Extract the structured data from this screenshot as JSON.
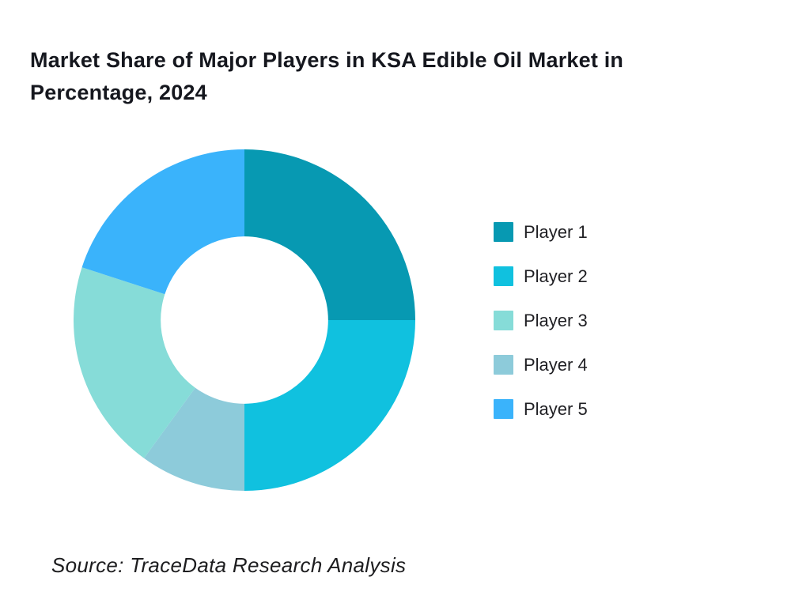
{
  "page": {
    "background": "#FFFFFF"
  },
  "header": {
    "title_line1": "Market Share of Major Players in KSA Edible Oil Market in",
    "title_line2": "Percentage, 2024"
  },
  "chart_data": {
    "type": "pie",
    "subtype": "donut",
    "title": "Market Share of Major Players in KSA Edible Oil Market in Percentage, 2024",
    "unit": "percent",
    "start_angle_deg": 0,
    "clockwise": true,
    "inner_radius_ratio": 0.49,
    "legend_position": "right",
    "hole_color": "#FFFFFF",
    "series": [
      {
        "name": "Player 1",
        "value": 25,
        "color": "#0799B2"
      },
      {
        "name": "Player 2",
        "value": 25,
        "color": "#10C1DF"
      },
      {
        "name": "Player 3",
        "value": 20,
        "color": "#86DCD8"
      },
      {
        "name": "Player 4",
        "value": 10,
        "color": "#8DCBDA"
      },
      {
        "name": "Player 5",
        "value": 20,
        "color": "#3AB3FB"
      }
    ],
    "draw_order": [
      "Player 1",
      "Player 2",
      "Player 4",
      "Player 3",
      "Player 5"
    ]
  },
  "footer": {
    "source": "Source: TraceData Research Analysis"
  }
}
